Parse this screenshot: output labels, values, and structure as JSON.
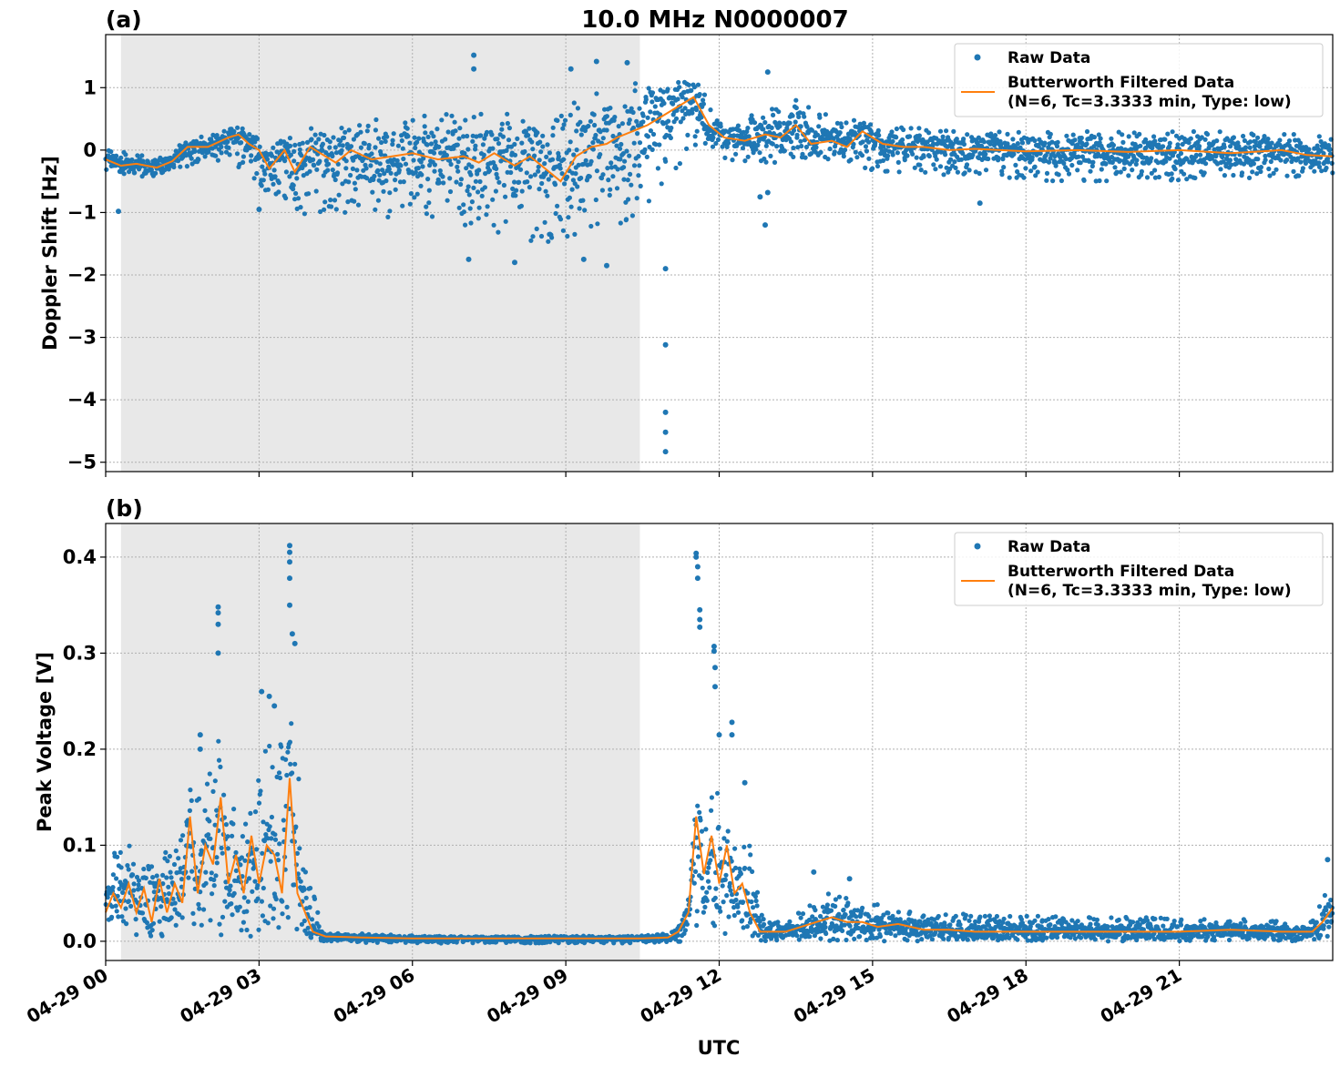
{
  "figure": {
    "title": "10.0 MHz N0000007",
    "xlabel": "UTC"
  },
  "legend": {
    "raw_label": "Raw Data",
    "filtered_label_line1": "Butterworth Filtered Data",
    "filtered_label_line2": "(N=6, Tc=3.3333 min, Type: low)"
  },
  "colors": {
    "raw": "#1f77b4",
    "filtered": "#ff7f0e",
    "shade": "#e8e8e8",
    "grid": "#b0b0b0"
  },
  "chart_data": [
    {
      "type": "scatter",
      "panel_label": "(a)",
      "ylabel": "Doppler Shift [Hz]",
      "xlim_hours": [
        0,
        24
      ],
      "ylim": [
        -5.15,
        1.85
      ],
      "yticks": [
        1,
        0,
        -1,
        -2,
        -3,
        -4,
        -5
      ],
      "ytick_labels": [
        "1",
        "0",
        "−1",
        "−2",
        "−3",
        "−4",
        "−5"
      ],
      "xticks_hours": [
        0,
        3,
        6,
        9,
        12,
        15,
        18,
        21
      ],
      "shaded_interval_hours": [
        0.3,
        10.45
      ],
      "grid": true,
      "legend_position": "upper right",
      "series": [
        {
          "name": "Raw Data",
          "kind": "points",
          "band": {
            "x": [
              0,
              0.5,
              1,
              1.5,
              2,
              2.5,
              3,
              3.5,
              4,
              4.5,
              5,
              5.5,
              6,
              6.5,
              7,
              7.5,
              8,
              8.5,
              9,
              9.5,
              10,
              10.5,
              11,
              11.5,
              12,
              12.5,
              13,
              13.5,
              14,
              14.5,
              15,
              16,
              17,
              18,
              19,
              20,
              21,
              22,
              23,
              24
            ],
            "upper": [
              0.0,
              -0.05,
              -0.1,
              0.1,
              0.3,
              0.35,
              0.2,
              0.3,
              0.2,
              0.35,
              0.45,
              0.55,
              0.6,
              0.6,
              0.6,
              0.6,
              0.6,
              0.5,
              0.7,
              0.9,
              1.0,
              1.1,
              1.15,
              1.2,
              0.5,
              0.5,
              0.7,
              0.8,
              0.6,
              0.55,
              0.4,
              0.35,
              0.3,
              0.3,
              0.3,
              0.3,
              0.3,
              0.3,
              0.3,
              0.2
            ],
            "lower": [
              -0.35,
              -0.4,
              -0.45,
              -0.3,
              -0.15,
              -0.2,
              -0.6,
              -0.8,
              -1.1,
              -1.0,
              -1.0,
              -1.1,
              -1.0,
              -1.1,
              -1.2,
              -1.3,
              -1.4,
              -1.5,
              -1.4,
              -1.3,
              -1.2,
              -1.0,
              -0.5,
              0.1,
              -0.2,
              -0.2,
              -0.2,
              -0.2,
              -0.2,
              -0.2,
              -0.35,
              -0.4,
              -0.4,
              -0.5,
              -0.5,
              -0.5,
              -0.5,
              -0.45,
              -0.45,
              -0.4
            ]
          },
          "outliers": [
            [
              7.2,
              1.52
            ],
            [
              7.2,
              1.3
            ],
            [
              9.1,
              1.3
            ],
            [
              9.6,
              1.42
            ],
            [
              10.2,
              1.4
            ],
            [
              10.95,
              -1.9
            ],
            [
              10.95,
              -3.12
            ],
            [
              10.95,
              -4.2
            ],
            [
              10.95,
              -4.52
            ],
            [
              10.95,
              -4.83
            ],
            [
              12.8,
              -0.75
            ],
            [
              12.9,
              -1.2
            ],
            [
              12.95,
              -0.68
            ],
            [
              12.95,
              1.25
            ],
            [
              7.1,
              -1.75
            ],
            [
              8.0,
              -1.8
            ],
            [
              9.35,
              -1.75
            ],
            [
              9.8,
              -1.85
            ],
            [
              0.25,
              -0.98
            ],
            [
              3.0,
              -0.95
            ],
            [
              17.1,
              -0.85
            ]
          ]
        },
        {
          "name": "Butterworth Filtered Data (N=6, Tc=3.3333 min, Type: low)",
          "kind": "line",
          "x": [
            0,
            0.3,
            0.6,
            1.0,
            1.3,
            1.6,
            2.0,
            2.4,
            2.6,
            2.8,
            3.0,
            3.2,
            3.5,
            3.7,
            4.0,
            4.2,
            4.5,
            4.8,
            5.2,
            5.6,
            6.0,
            6.5,
            7.0,
            7.3,
            7.6,
            8.0,
            8.3,
            8.6,
            8.9,
            9.2,
            9.5,
            9.8,
            10.0,
            10.3,
            10.6,
            10.9,
            11.2,
            11.5,
            11.8,
            12.1,
            12.5,
            12.9,
            13.2,
            13.5,
            13.8,
            14.2,
            14.5,
            14.8,
            15.2,
            15.6,
            16.0,
            16.5,
            17.0,
            17.5,
            18.0,
            19.0,
            20.0,
            21.0,
            22.0,
            23.0,
            23.5,
            24.0
          ],
          "y": [
            -0.15,
            -0.25,
            -0.22,
            -0.28,
            -0.18,
            0.05,
            0.05,
            0.2,
            0.25,
            0.1,
            0.0,
            -0.3,
            0.0,
            -0.35,
            0.05,
            -0.05,
            -0.2,
            0.0,
            -0.15,
            -0.1,
            -0.05,
            -0.15,
            -0.1,
            -0.2,
            -0.05,
            -0.25,
            -0.1,
            -0.3,
            -0.5,
            -0.1,
            0.05,
            0.1,
            0.2,
            0.3,
            0.4,
            0.55,
            0.7,
            0.85,
            0.4,
            0.2,
            0.15,
            0.25,
            0.2,
            0.4,
            0.1,
            0.15,
            0.05,
            0.3,
            0.1,
            0.05,
            0.05,
            0.0,
            0.02,
            0.0,
            -0.02,
            0.0,
            -0.03,
            0.0,
            -0.05,
            0.0,
            -0.08,
            -0.1
          ]
        }
      ]
    },
    {
      "type": "scatter",
      "panel_label": "(b)",
      "ylabel": "Peak Voltage [V]",
      "xlabel": "UTC",
      "xlim_hours": [
        0,
        24
      ],
      "ylim": [
        -0.02,
        0.435
      ],
      "yticks": [
        0.0,
        0.1,
        0.2,
        0.3,
        0.4
      ],
      "ytick_labels": [
        "0.0",
        "0.1",
        "0.2",
        "0.3",
        "0.4"
      ],
      "xticks_hours": [
        0,
        3,
        6,
        9,
        12,
        15,
        18,
        21
      ],
      "xtick_labels": [
        "04-29 00",
        "04-29 03",
        "04-29 06",
        "04-29 09",
        "04-29 12",
        "04-29 15",
        "04-29 18",
        "04-29 21"
      ],
      "shaded_interval_hours": [
        0.3,
        10.45
      ],
      "grid": true,
      "legend_position": "upper right",
      "series": [
        {
          "name": "Raw Data",
          "kind": "points",
          "band": {
            "x": [
              0,
              0.3,
              0.6,
              1.0,
              1.4,
              1.7,
              2.0,
              2.2,
              2.5,
              2.8,
              3.1,
              3.4,
              3.6,
              3.8,
              4.0,
              4.3,
              5,
              6,
              7,
              8,
              9,
              10,
              10.5,
              11.0,
              11.3,
              11.5,
              11.7,
              12.0,
              12.3,
              12.6,
              12.9,
              13.3,
              13.7,
              14.1,
              14.5,
              15.0,
              15.5,
              16,
              17,
              18,
              19,
              20,
              21,
              22,
              23,
              23.6,
              24
            ],
            "upper": [
              0.09,
              0.1,
              0.1,
              0.09,
              0.1,
              0.14,
              0.18,
              0.24,
              0.14,
              0.12,
              0.2,
              0.22,
              0.26,
              0.16,
              0.06,
              0.01,
              0.008,
              0.006,
              0.005,
              0.005,
              0.006,
              0.005,
              0.006,
              0.008,
              0.02,
              0.11,
              0.2,
              0.16,
              0.12,
              0.1,
              0.02,
              0.02,
              0.035,
              0.055,
              0.045,
              0.04,
              0.035,
              0.03,
              0.028,
              0.027,
              0.025,
              0.025,
              0.025,
              0.025,
              0.022,
              0.02,
              0.07
            ],
            "lower": [
              0.005,
              0.005,
              0.005,
              0.005,
              0.005,
              0.005,
              0.005,
              0.005,
              0.005,
              0.005,
              0.005,
              0.005,
              0.005,
              0.005,
              0.002,
              0.0,
              -0.002,
              -0.002,
              -0.002,
              -0.002,
              -0.002,
              -0.002,
              -0.002,
              -0.002,
              0.0,
              0.005,
              0.005,
              0.005,
              0.005,
              0.005,
              0.0,
              0.0,
              0.0,
              0.0,
              0.0,
              0.0,
              0.0,
              0.0,
              0.0,
              0.0,
              0.0,
              0.0,
              0.0,
              0.0,
              0.0,
              0.0,
              0.005
            ]
          },
          "outliers": [
            [
              3.6,
              0.412
            ],
            [
              3.6,
              0.405
            ],
            [
              3.6,
              0.395
            ],
            [
              3.6,
              0.378
            ],
            [
              3.6,
              0.35
            ],
            [
              3.65,
              0.32
            ],
            [
              3.7,
              0.31
            ],
            [
              2.2,
              0.348
            ],
            [
              2.2,
              0.342
            ],
            [
              2.2,
              0.33
            ],
            [
              2.2,
              0.3
            ],
            [
              1.85,
              0.215
            ],
            [
              1.85,
              0.2
            ],
            [
              3.05,
              0.26
            ],
            [
              3.2,
              0.255
            ],
            [
              3.3,
              0.245
            ],
            [
              11.55,
              0.404
            ],
            [
              11.55,
              0.4
            ],
            [
              11.58,
              0.39
            ],
            [
              11.58,
              0.378
            ],
            [
              11.62,
              0.345
            ],
            [
              11.62,
              0.335
            ],
            [
              11.62,
              0.327
            ],
            [
              11.9,
              0.307
            ],
            [
              11.9,
              0.302
            ],
            [
              11.92,
              0.285
            ],
            [
              11.92,
              0.265
            ],
            [
              12.0,
              0.215
            ],
            [
              12.25,
              0.228
            ],
            [
              12.25,
              0.215
            ],
            [
              12.5,
              0.165
            ],
            [
              13.85,
              0.072
            ],
            [
              14.55,
              0.065
            ],
            [
              23.9,
              0.085
            ]
          ]
        },
        {
          "name": "Butterworth Filtered Data (N=6, Tc=3.3333 min, Type: low)",
          "kind": "line",
          "x": [
            0,
            0.15,
            0.3,
            0.45,
            0.6,
            0.75,
            0.9,
            1.05,
            1.2,
            1.35,
            1.5,
            1.65,
            1.8,
            1.95,
            2.1,
            2.25,
            2.4,
            2.55,
            2.7,
            2.85,
            3.0,
            3.15,
            3.3,
            3.45,
            3.6,
            3.75,
            3.9,
            4.05,
            4.3,
            5,
            6,
            7,
            8,
            9,
            10,
            10.5,
            11.0,
            11.2,
            11.4,
            11.55,
            11.7,
            11.85,
            12.0,
            12.15,
            12.3,
            12.45,
            12.6,
            12.8,
            13.0,
            13.3,
            13.6,
            13.9,
            14.2,
            14.5,
            14.8,
            15.1,
            15.5,
            16.0,
            16.5,
            17.0,
            17.5,
            18,
            19,
            20,
            21,
            22,
            23,
            23.6,
            23.8,
            24
          ],
          "y": [
            0.03,
            0.05,
            0.035,
            0.06,
            0.03,
            0.055,
            0.02,
            0.065,
            0.03,
            0.06,
            0.04,
            0.13,
            0.05,
            0.1,
            0.08,
            0.15,
            0.06,
            0.09,
            0.05,
            0.11,
            0.06,
            0.1,
            0.09,
            0.05,
            0.17,
            0.05,
            0.03,
            0.01,
            0.005,
            0.004,
            0.003,
            0.003,
            0.003,
            0.003,
            0.003,
            0.003,
            0.004,
            0.01,
            0.03,
            0.13,
            0.07,
            0.11,
            0.06,
            0.1,
            0.05,
            0.06,
            0.03,
            0.01,
            0.01,
            0.01,
            0.015,
            0.02,
            0.025,
            0.02,
            0.02,
            0.015,
            0.018,
            0.012,
            0.012,
            0.01,
            0.01,
            0.01,
            0.01,
            0.01,
            0.01,
            0.012,
            0.01,
            0.01,
            0.02,
            0.035
          ]
        }
      ]
    }
  ]
}
